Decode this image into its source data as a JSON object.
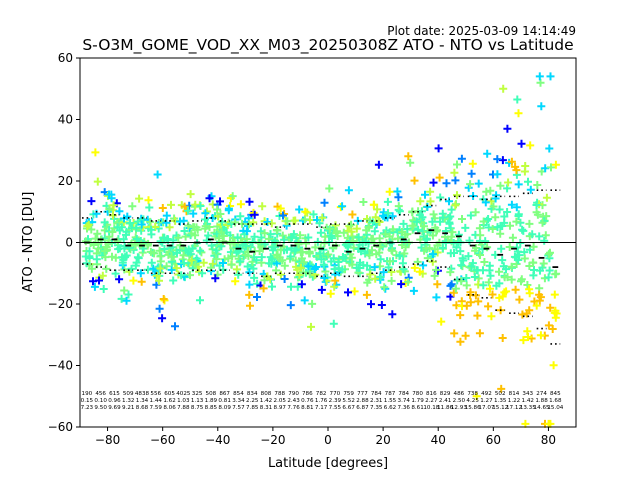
{
  "plot_date": "Plot date: 2025-03-09 14:14:49",
  "chart_data": {
    "type": "scatter",
    "title": "S-O3M_GOME_VOD_XX_M03_20250308Z ATO - NTO vs Latitude",
    "xlabel": "Latitude [degrees]",
    "ylabel": "ATO - NTO [DU]",
    "xlim": [
      -90,
      90
    ],
    "ylim": [
      -60,
      60
    ],
    "xticks": [
      -80,
      -60,
      -40,
      -20,
      0,
      20,
      40,
      60,
      80
    ],
    "yticks": [
      -60,
      -40,
      -20,
      0,
      20,
      40,
      60
    ],
    "grid": false,
    "zero_line": 0,
    "colors": {
      "palette": [
        "#0000ff",
        "#0080ff",
        "#00d8ff",
        "#40ffb8",
        "#80ff80",
        "#c0ff40",
        "#ffff00",
        "#ffc000"
      ],
      "mean_marker": "#000000"
    },
    "bins": {
      "lat": [
        -87.5,
        -82.5,
        -77.5,
        -72.5,
        -67.5,
        -62.5,
        -57.5,
        -52.5,
        -47.5,
        -42.5,
        -37.5,
        -32.5,
        -27.5,
        -22.5,
        -17.5,
        -12.5,
        -7.5,
        -2.5,
        2.5,
        7.5,
        12.5,
        17.5,
        22.5,
        27.5,
        32.5,
        37.5,
        42.5,
        47.5,
        52.5,
        57.5,
        62.5,
        67.5,
        72.5,
        77.5,
        82.5
      ],
      "mean": [
        0,
        1,
        1,
        -1,
        -1,
        -1,
        -1,
        -1,
        0,
        1,
        0,
        -2,
        -3,
        -2,
        -1,
        -1,
        -2,
        -2,
        -1,
        -3,
        -2,
        -1,
        0,
        1,
        3,
        4,
        3,
        2,
        -1,
        -2,
        -4,
        -2,
        -1,
        -5,
        -8
      ],
      "upper": [
        8,
        10,
        9,
        8,
        8,
        7,
        7,
        6,
        7,
        8,
        7,
        6,
        6,
        6,
        5,
        6,
        6,
        5,
        6,
        6,
        7,
        7,
        8,
        9,
        10,
        12,
        14,
        15,
        15,
        14,
        15,
        15,
        16,
        17,
        17
      ],
      "lower": [
        -7,
        -8,
        -9,
        -9,
        -9,
        -10,
        -10,
        -10,
        -9,
        -9,
        -9,
        -10,
        -10,
        -11,
        -10,
        -10,
        -10,
        -11,
        -10,
        -11,
        -11,
        -10,
        -9,
        -8,
        -7,
        -6,
        -8,
        -12,
        -17,
        -18,
        -22,
        -23,
        -24,
        -28,
        -33
      ],
      "count": [
        "190",
        "456",
        "615",
        "509",
        "4838",
        "556",
        "605",
        "4025",
        "325",
        "508",
        "867",
        "854",
        "834",
        "808",
        "788",
        "790",
        "786",
        "782",
        "770",
        "759",
        "777",
        "784",
        "787",
        "784",
        "780",
        "816",
        "829",
        "486",
        "738",
        "492",
        "502",
        "814",
        "343",
        "274",
        "845"
      ],
      "std": [
        "0.15",
        "0.10",
        "0.96",
        "1.32",
        "1.34",
        "1.44",
        "1.62",
        "1.03",
        "1.13",
        "1.89",
        "0.81",
        "3.34",
        "2.25",
        "1.42",
        "2.05",
        "2.43",
        "0.76",
        "1.76",
        "2.39",
        "5.52",
        "2.88",
        "2.31",
        "1.55",
        "3.74",
        "1.79",
        "2.27",
        "2.41",
        "2.50",
        "4.25",
        "1.27",
        "1.35",
        "1.22",
        "1.42",
        "1.88",
        "1.68"
      ],
      "rms": [
        "7.23",
        "9.50",
        "9.69",
        "9.21",
        "8.68",
        "7.59",
        "8.06",
        "7.88",
        "8.75",
        "8.85",
        "8.09",
        "7.57",
        "7.85",
        "8.31",
        "8.97",
        "7.76",
        "8.81",
        "7.17",
        "7.55",
        "6.67",
        "6.87",
        "7.35",
        "6.62",
        "7.36",
        "8.61",
        "10.18",
        "11.86",
        "12.93",
        "15.86",
        "17.07",
        "15.12",
        "17.12",
        "13.35",
        "14.65",
        "15.04"
      ]
    }
  }
}
